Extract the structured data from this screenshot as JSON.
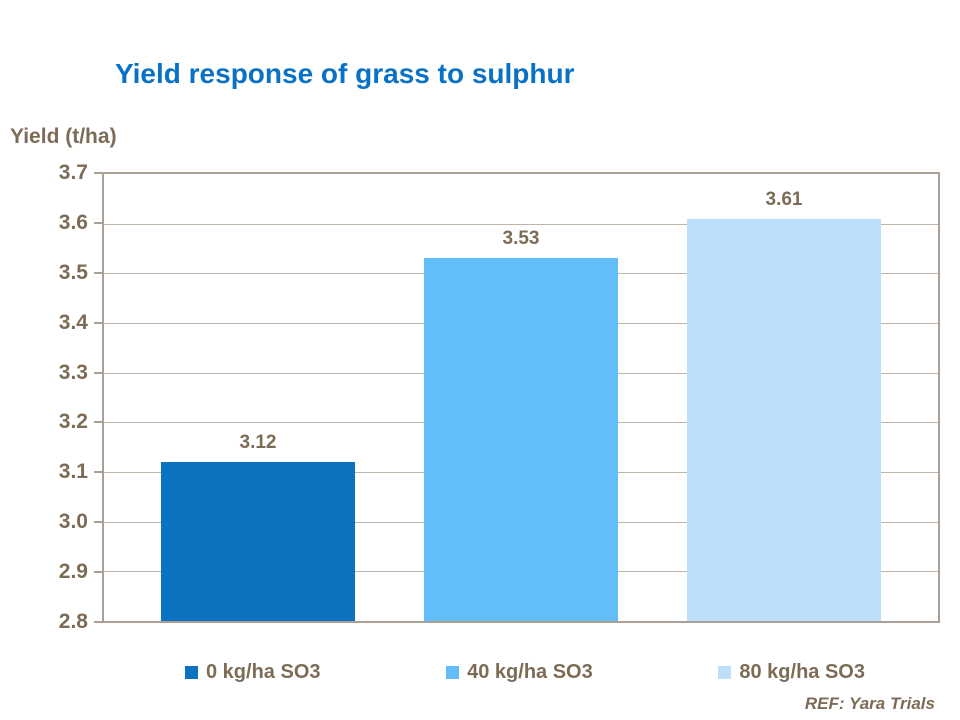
{
  "title": "Yield response of grass to sulphur",
  "footer": "REF: Yara Trials",
  "colors": {
    "title": "#0a72c6",
    "text": "#7d6c55",
    "axis": "#a99f94",
    "gridline": "#bdb4aa",
    "bars": [
      "#0b72bf",
      "#63bdf8",
      "#bddff9"
    ]
  },
  "chart_data": {
    "type": "bar",
    "categories": [
      "0 kg/ha SO3",
      "40 kg/ha SO3",
      "80 kg/ha SO3"
    ],
    "values": [
      3.12,
      3.53,
      3.61
    ],
    "data_labels": [
      "3.12",
      "3.53",
      "3.61"
    ],
    "title": "Yield response of grass to sulphur",
    "xlabel": "",
    "ylabel": "Yield (t/ha)",
    "ylim": [
      2.8,
      3.7
    ],
    "ytick_step": 0.1,
    "ytick_labels": [
      "3.7",
      "3.6",
      "3.5",
      "3.4",
      "3.3",
      "3.2",
      "3.1",
      "3.0",
      "2.9",
      "2.8"
    ],
    "grid": true,
    "legend_position": "bottom",
    "legend": [
      "0 kg/ha SO3",
      "40 kg/ha SO3",
      "80 kg/ha SO3"
    ]
  }
}
